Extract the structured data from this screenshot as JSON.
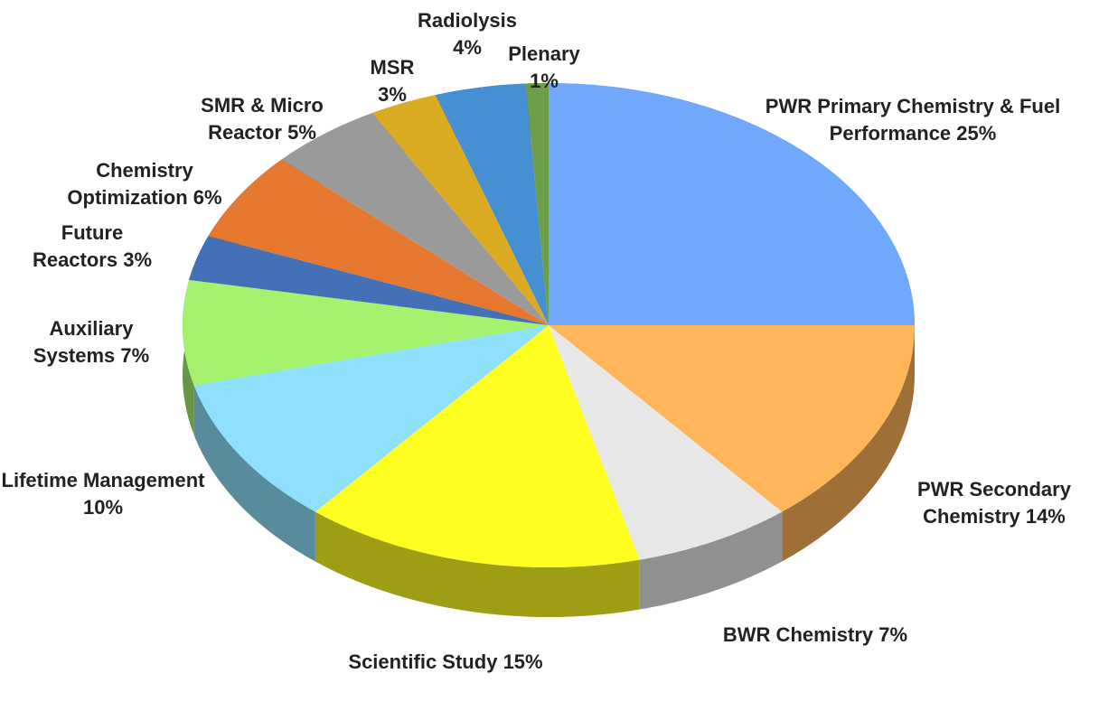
{
  "chart_data": {
    "type": "pie3d",
    "categories": [
      "PWR Primary Chemistry & Fuel Performance",
      "PWR Secondary Chemistry",
      "BWR Chemistry",
      "Scientific Study",
      "Lifetime Management",
      "Auxiliary Systems",
      "Future Reactors",
      "Chemistry Optimization",
      "SMR & Micro Reactor",
      "MSR",
      "Radiolysis",
      "Plenary"
    ],
    "values": [
      25,
      14,
      7,
      15,
      10,
      7,
      3,
      6,
      5,
      3,
      4,
      1
    ],
    "value_labels": [
      "25%",
      "14%",
      "7%",
      "15%",
      "10%",
      "7%",
      "3%",
      "6%",
      "5%",
      "3%",
      "4%",
      "1%"
    ],
    "colors": [
      "#6fa8fd",
      "#ffb55a",
      "#e8e8e8",
      "#ffff22",
      "#8ee0fc",
      "#a6f26e",
      "#4470b8",
      "#e6772e",
      "#9a9a9a",
      "#dbab22",
      "#4590d2",
      "#6d9e48"
    ]
  }
}
